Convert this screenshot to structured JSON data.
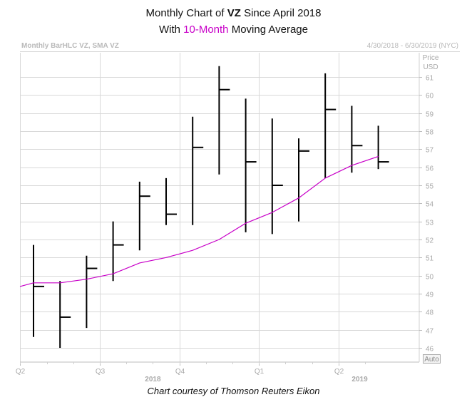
{
  "title": {
    "line1_prefix": "Monthly Chart of ",
    "line1_bold": "VZ",
    "line1_suffix": " Since April 2018",
    "line2_prefix": "With ",
    "line2_highlight": "10-Month",
    "line2_suffix": " Moving Average"
  },
  "header": {
    "left": "Monthly BarHLC VZ, SMA VZ",
    "right": "4/30/2018 - 6/30/2019 (NYC)"
  },
  "axis": {
    "price_label": "Price",
    "currency_label": "USD",
    "auto_label": "Auto"
  },
  "credit": "Chart courtesy of Thomson Reuters Eikon",
  "colors": {
    "bars": "#000000",
    "sma": "#c800c8",
    "grid": "#d8d8d8",
    "axis_text": "#a8a8a8"
  },
  "chart_data": {
    "type": "bar",
    "subtype": "ohlc-hlc",
    "ylim": [
      45.5,
      62.2
    ],
    "yticks": [
      46,
      47,
      48,
      49,
      50,
      51,
      52,
      53,
      54,
      55,
      56,
      57,
      58,
      59,
      60,
      61
    ],
    "grid": true,
    "x_quarter_ticks": [
      {
        "label": "Q2",
        "index": 0
      },
      {
        "label": "Q3",
        "index": 3
      },
      {
        "label": "Q4",
        "index": 6
      },
      {
        "label": "Q1",
        "index": 9
      },
      {
        "label": "Q2",
        "index": 12
      }
    ],
    "year_labels": [
      {
        "label": "2018",
        "index": 4.5
      },
      {
        "label": "2019",
        "index": 12.3
      }
    ],
    "series": [
      {
        "name": "VZ",
        "type": "hlc",
        "bars": [
          {
            "high": 51.7,
            "low": 46.6,
            "close": 49.4
          },
          {
            "high": 49.7,
            "low": 46.0,
            "close": 47.7
          },
          {
            "high": 51.1,
            "low": 47.1,
            "close": 50.4
          },
          {
            "high": 53.0,
            "low": 49.7,
            "close": 51.7
          },
          {
            "high": 55.2,
            "low": 51.4,
            "close": 54.4
          },
          {
            "high": 55.4,
            "low": 52.8,
            "close": 53.4
          },
          {
            "high": 58.8,
            "low": 52.8,
            "close": 57.1
          },
          {
            "high": 61.6,
            "low": 55.6,
            "close": 60.3
          },
          {
            "high": 59.8,
            "low": 52.4,
            "close": 56.3
          },
          {
            "high": 58.7,
            "low": 52.3,
            "close": 55.0
          },
          {
            "high": 57.6,
            "low": 53.0,
            "close": 56.9
          },
          {
            "high": 61.2,
            "low": 55.4,
            "close": 59.2
          },
          {
            "high": 59.4,
            "low": 55.7,
            "close": 57.2
          },
          {
            "high": 58.3,
            "low": 55.9,
            "close": 56.3
          }
        ]
      },
      {
        "name": "SMA",
        "type": "line",
        "x_start": -1,
        "values": [
          49.4,
          49.6,
          49.6,
          49.8,
          50.1,
          50.7,
          51.0,
          51.4,
          52.0,
          52.9,
          53.5,
          54.3,
          55.4,
          56.1,
          56.6
        ]
      }
    ]
  }
}
